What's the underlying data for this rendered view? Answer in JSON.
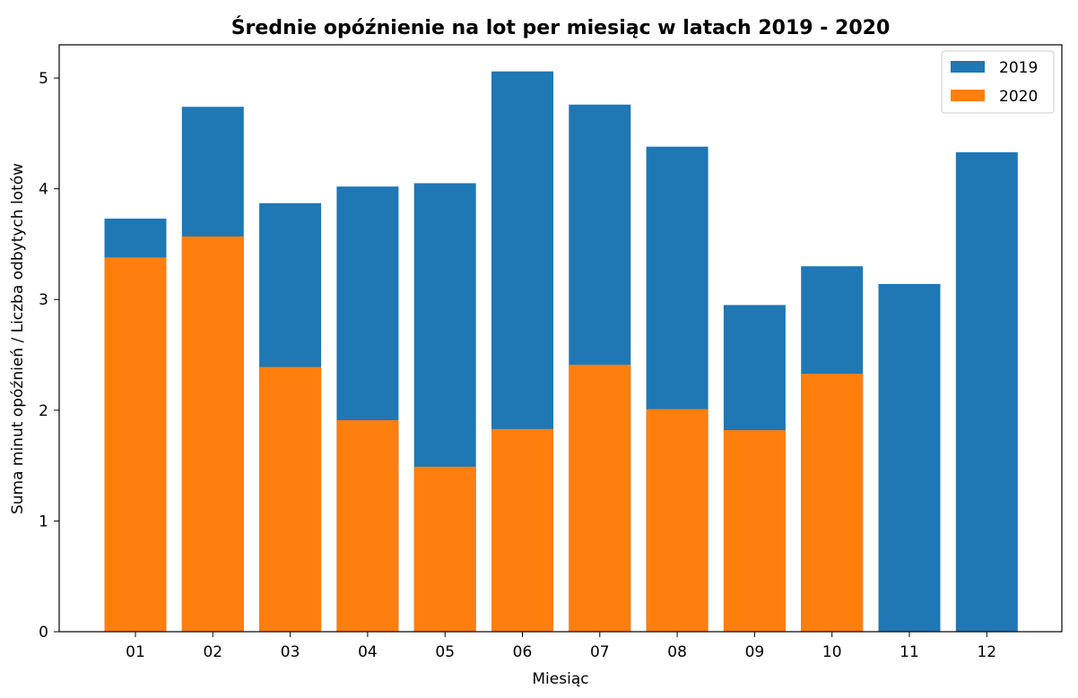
{
  "chart_data": {
    "type": "bar",
    "title": "Średnie opóźnienie na lot per miesiąc w latach 2019 - 2020",
    "xlabel": "Miesiąc",
    "ylabel": "Suma minut opóźnień / Liczba odbytych lotów",
    "categories": [
      "01",
      "02",
      "03",
      "04",
      "05",
      "06",
      "07",
      "08",
      "09",
      "10",
      "11",
      "12"
    ],
    "ylim": [
      0,
      5.3
    ],
    "yticks": [
      0,
      1,
      2,
      3,
      4,
      5
    ],
    "grid": false,
    "legend_position": "top-right",
    "overlaid": true,
    "series": [
      {
        "name": "2019",
        "color": "#1f77b4",
        "values": [
          3.73,
          4.74,
          3.87,
          4.02,
          4.05,
          5.06,
          4.76,
          4.38,
          2.95,
          3.3,
          3.14,
          4.33
        ]
      },
      {
        "name": "2020",
        "color": "#ff7f0e",
        "values": [
          3.38,
          3.57,
          2.39,
          1.91,
          1.49,
          1.83,
          2.41,
          2.01,
          1.82,
          2.33,
          null,
          null
        ]
      }
    ]
  }
}
